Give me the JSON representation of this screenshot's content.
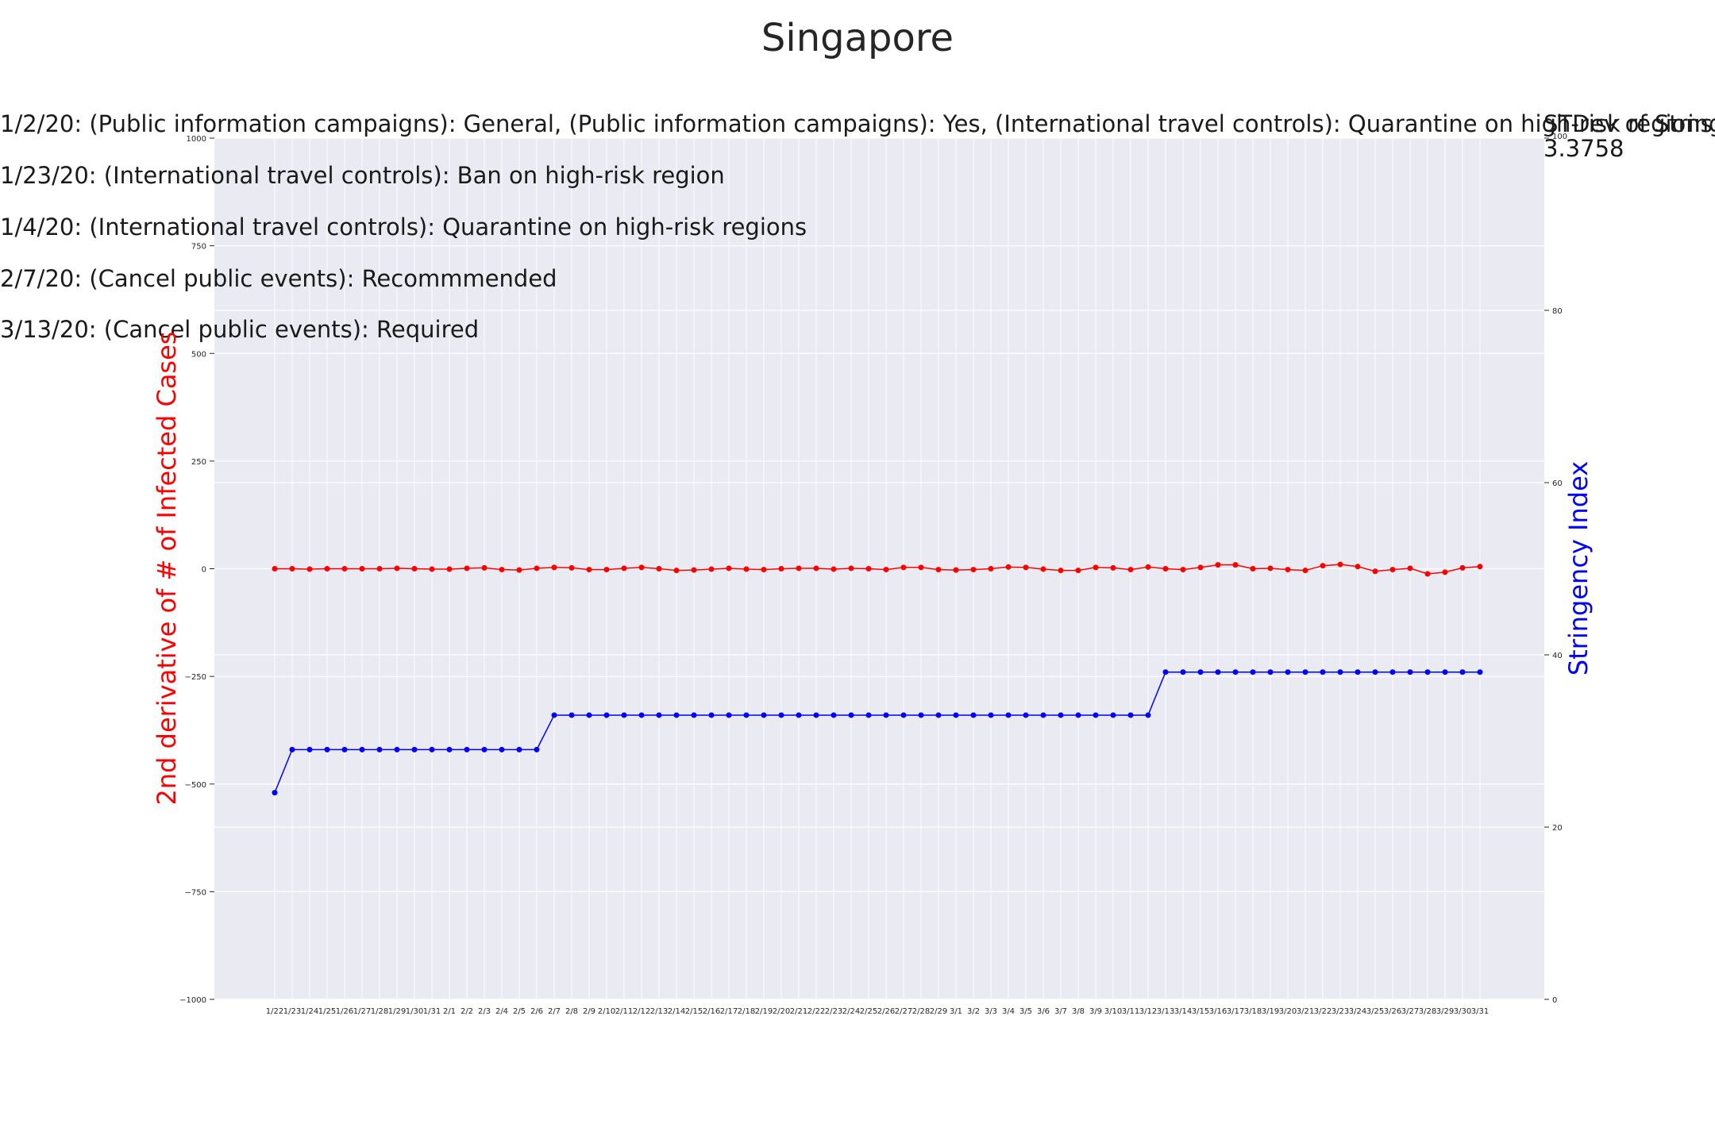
{
  "chart_data": {
    "type": "line",
    "title": "Singapore",
    "annotations": [
      "1/2/20: (Public information campaigns): General, (Public information campaigns): Yes, (International travel controls): Quarantine on high-risk regions",
      "1/23/20: (International travel controls): Ban on high-risk region",
      "1/4/20: (International travel controls): Quarantine on high-risk regions",
      "2/7/20: (Cancel public events): Recommmended",
      "3/13/20: (Cancel public events): Required"
    ],
    "stdev_label": "STDev of Stringency",
    "stdev_value": "3.3758",
    "ylabel_left": "2nd derivative of # of Infected Cases",
    "ylabel_right": "Stringency Index",
    "ylim_left": [
      -1000,
      1000
    ],
    "ylim_right": [
      0,
      100
    ],
    "yticks_left": [
      -1000,
      -750,
      -500,
      -250,
      0,
      250,
      500,
      750,
      1000
    ],
    "yticks_right": [
      0,
      20,
      40,
      60,
      80,
      100
    ],
    "grid": true,
    "x": [
      "1/22",
      "1/23",
      "1/24",
      "1/25",
      "1/26",
      "1/27",
      "1/28",
      "1/29",
      "1/30",
      "1/31",
      "2/1",
      "2/2",
      "2/3",
      "2/4",
      "2/5",
      "2/6",
      "2/7",
      "2/8",
      "2/9",
      "2/10",
      "2/11",
      "2/12",
      "2/13",
      "2/14",
      "2/15",
      "2/16",
      "2/17",
      "2/18",
      "2/19",
      "2/20",
      "2/21",
      "2/22",
      "2/23",
      "2/24",
      "2/25",
      "2/26",
      "2/27",
      "2/28",
      "2/29",
      "3/1",
      "3/2",
      "3/3",
      "3/4",
      "3/5",
      "3/6",
      "3/7",
      "3/8",
      "3/9",
      "3/10",
      "3/11",
      "3/12",
      "3/13",
      "3/14",
      "3/15",
      "3/16",
      "3/17",
      "3/18",
      "3/19",
      "3/20",
      "3/21",
      "3/22",
      "3/23",
      "3/24",
      "3/25",
      "3/26",
      "3/27",
      "3/28",
      "3/29",
      "3/30",
      "3/31"
    ],
    "series": [
      {
        "axis": "left",
        "color": "#ff0000",
        "values": [
          0,
          0,
          -1,
          0,
          0,
          0,
          0,
          1,
          0,
          -1,
          -1,
          1,
          2,
          -2,
          -3,
          1,
          3,
          2,
          -2,
          -2,
          1,
          3,
          0,
          -4,
          -3,
          -1,
          1,
          -1,
          -2,
          0,
          1,
          1,
          -1,
          1,
          0,
          -2,
          3,
          3,
          -2,
          -3,
          -2,
          0,
          4,
          3,
          -1,
          -4,
          -4,
          3,
          2,
          -2,
          4,
          0,
          -2,
          3,
          9,
          9,
          0,
          1,
          -2,
          -4,
          7,
          10,
          5,
          -6,
          -2,
          1,
          -12,
          -8,
          2,
          5
        ]
      },
      {
        "axis": "right",
        "color": "#0000ff",
        "values": [
          24,
          29,
          29,
          29,
          29,
          29,
          29,
          29,
          29,
          29,
          29,
          29,
          29,
          29,
          29,
          29,
          33,
          33,
          33,
          33,
          33,
          33,
          33,
          33,
          33,
          33,
          33,
          33,
          33,
          33,
          33,
          33,
          33,
          33,
          33,
          33,
          33,
          33,
          33,
          33,
          33,
          33,
          33,
          33,
          33,
          33,
          33,
          33,
          33,
          33,
          33,
          38,
          38,
          38,
          38,
          38,
          38,
          38,
          38,
          38,
          38,
          38,
          38,
          38,
          38,
          38,
          38,
          38,
          38,
          38
        ]
      }
    ]
  }
}
